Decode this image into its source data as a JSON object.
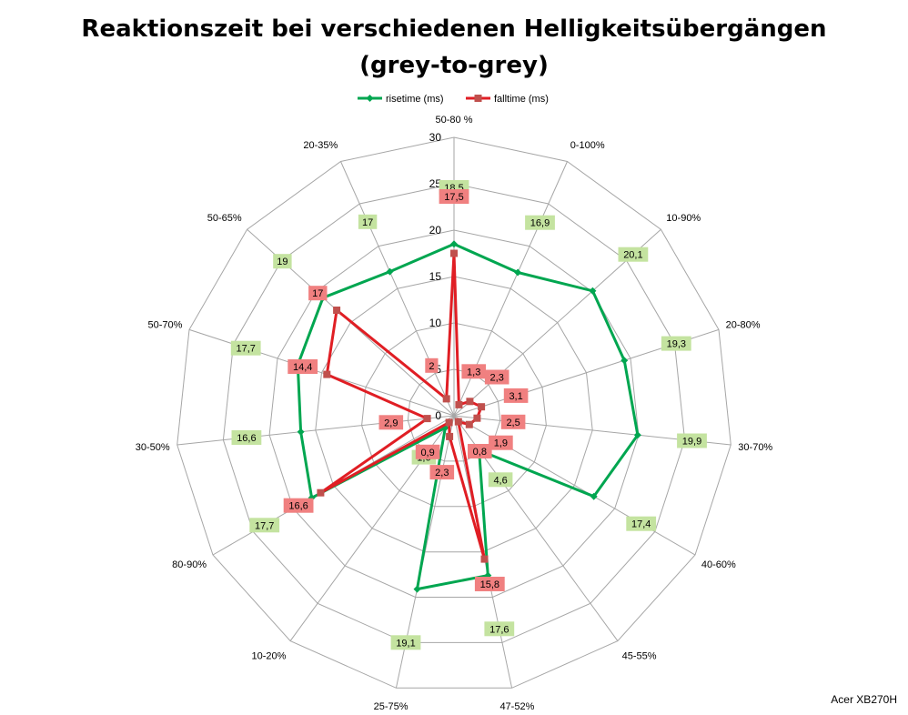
{
  "chart_data": {
    "type": "radar",
    "title_line1": "Reaktionszeit bei verschiedenen Helligkeitsübergängen",
    "title_line2": "(grey-to-grey)",
    "categories": [
      "50-80 %",
      "0-100%",
      "10-90%",
      "20-80%",
      "30-70%",
      "40-60%",
      "45-55%",
      "47-52%",
      "25-75%",
      "10-20%",
      "80-90%",
      "30-50%",
      "50-70%",
      "50-65%",
      "20-35%"
    ],
    "r_ticks": [
      0,
      5,
      10,
      15,
      20,
      25,
      30
    ],
    "rlim": [
      0,
      30
    ],
    "grid": true,
    "legend_position": "top",
    "series": [
      {
        "name": "risetime (ms)",
        "color": "#00a650",
        "label_bg": "#c4e3a0",
        "values": [
          18.5,
          16.9,
          20.1,
          19.3,
          19.9,
          17.4,
          4.6,
          17.6,
          19.1,
          1.6,
          17.7,
          16.6,
          17.7,
          19,
          17
        ],
        "labels": [
          "18,5",
          "16,9",
          "20,1",
          "19,3",
          "19,9",
          "17,4",
          "4,6",
          "17,6",
          "19,1",
          "1,6",
          "17,7",
          "16,6",
          "17,7",
          "19",
          "17"
        ]
      },
      {
        "name": "falltime (ms)",
        "color": "#e01e24",
        "label_bg": "#f08080",
        "values": [
          17.5,
          1.3,
          2.3,
          3.1,
          2.5,
          1.9,
          0.8,
          15.8,
          2.3,
          0.9,
          16.6,
          2.9,
          14.4,
          17,
          2
        ],
        "labels": [
          "17,5",
          "1,3",
          "2,3",
          "3,1",
          "2,5",
          "1,9",
          "0,8",
          "15,8",
          "2,3",
          "0,9",
          "16,6",
          "2,9",
          "14,4",
          "17",
          "2"
        ]
      }
    ]
  },
  "watermark": "Acer XB270H"
}
